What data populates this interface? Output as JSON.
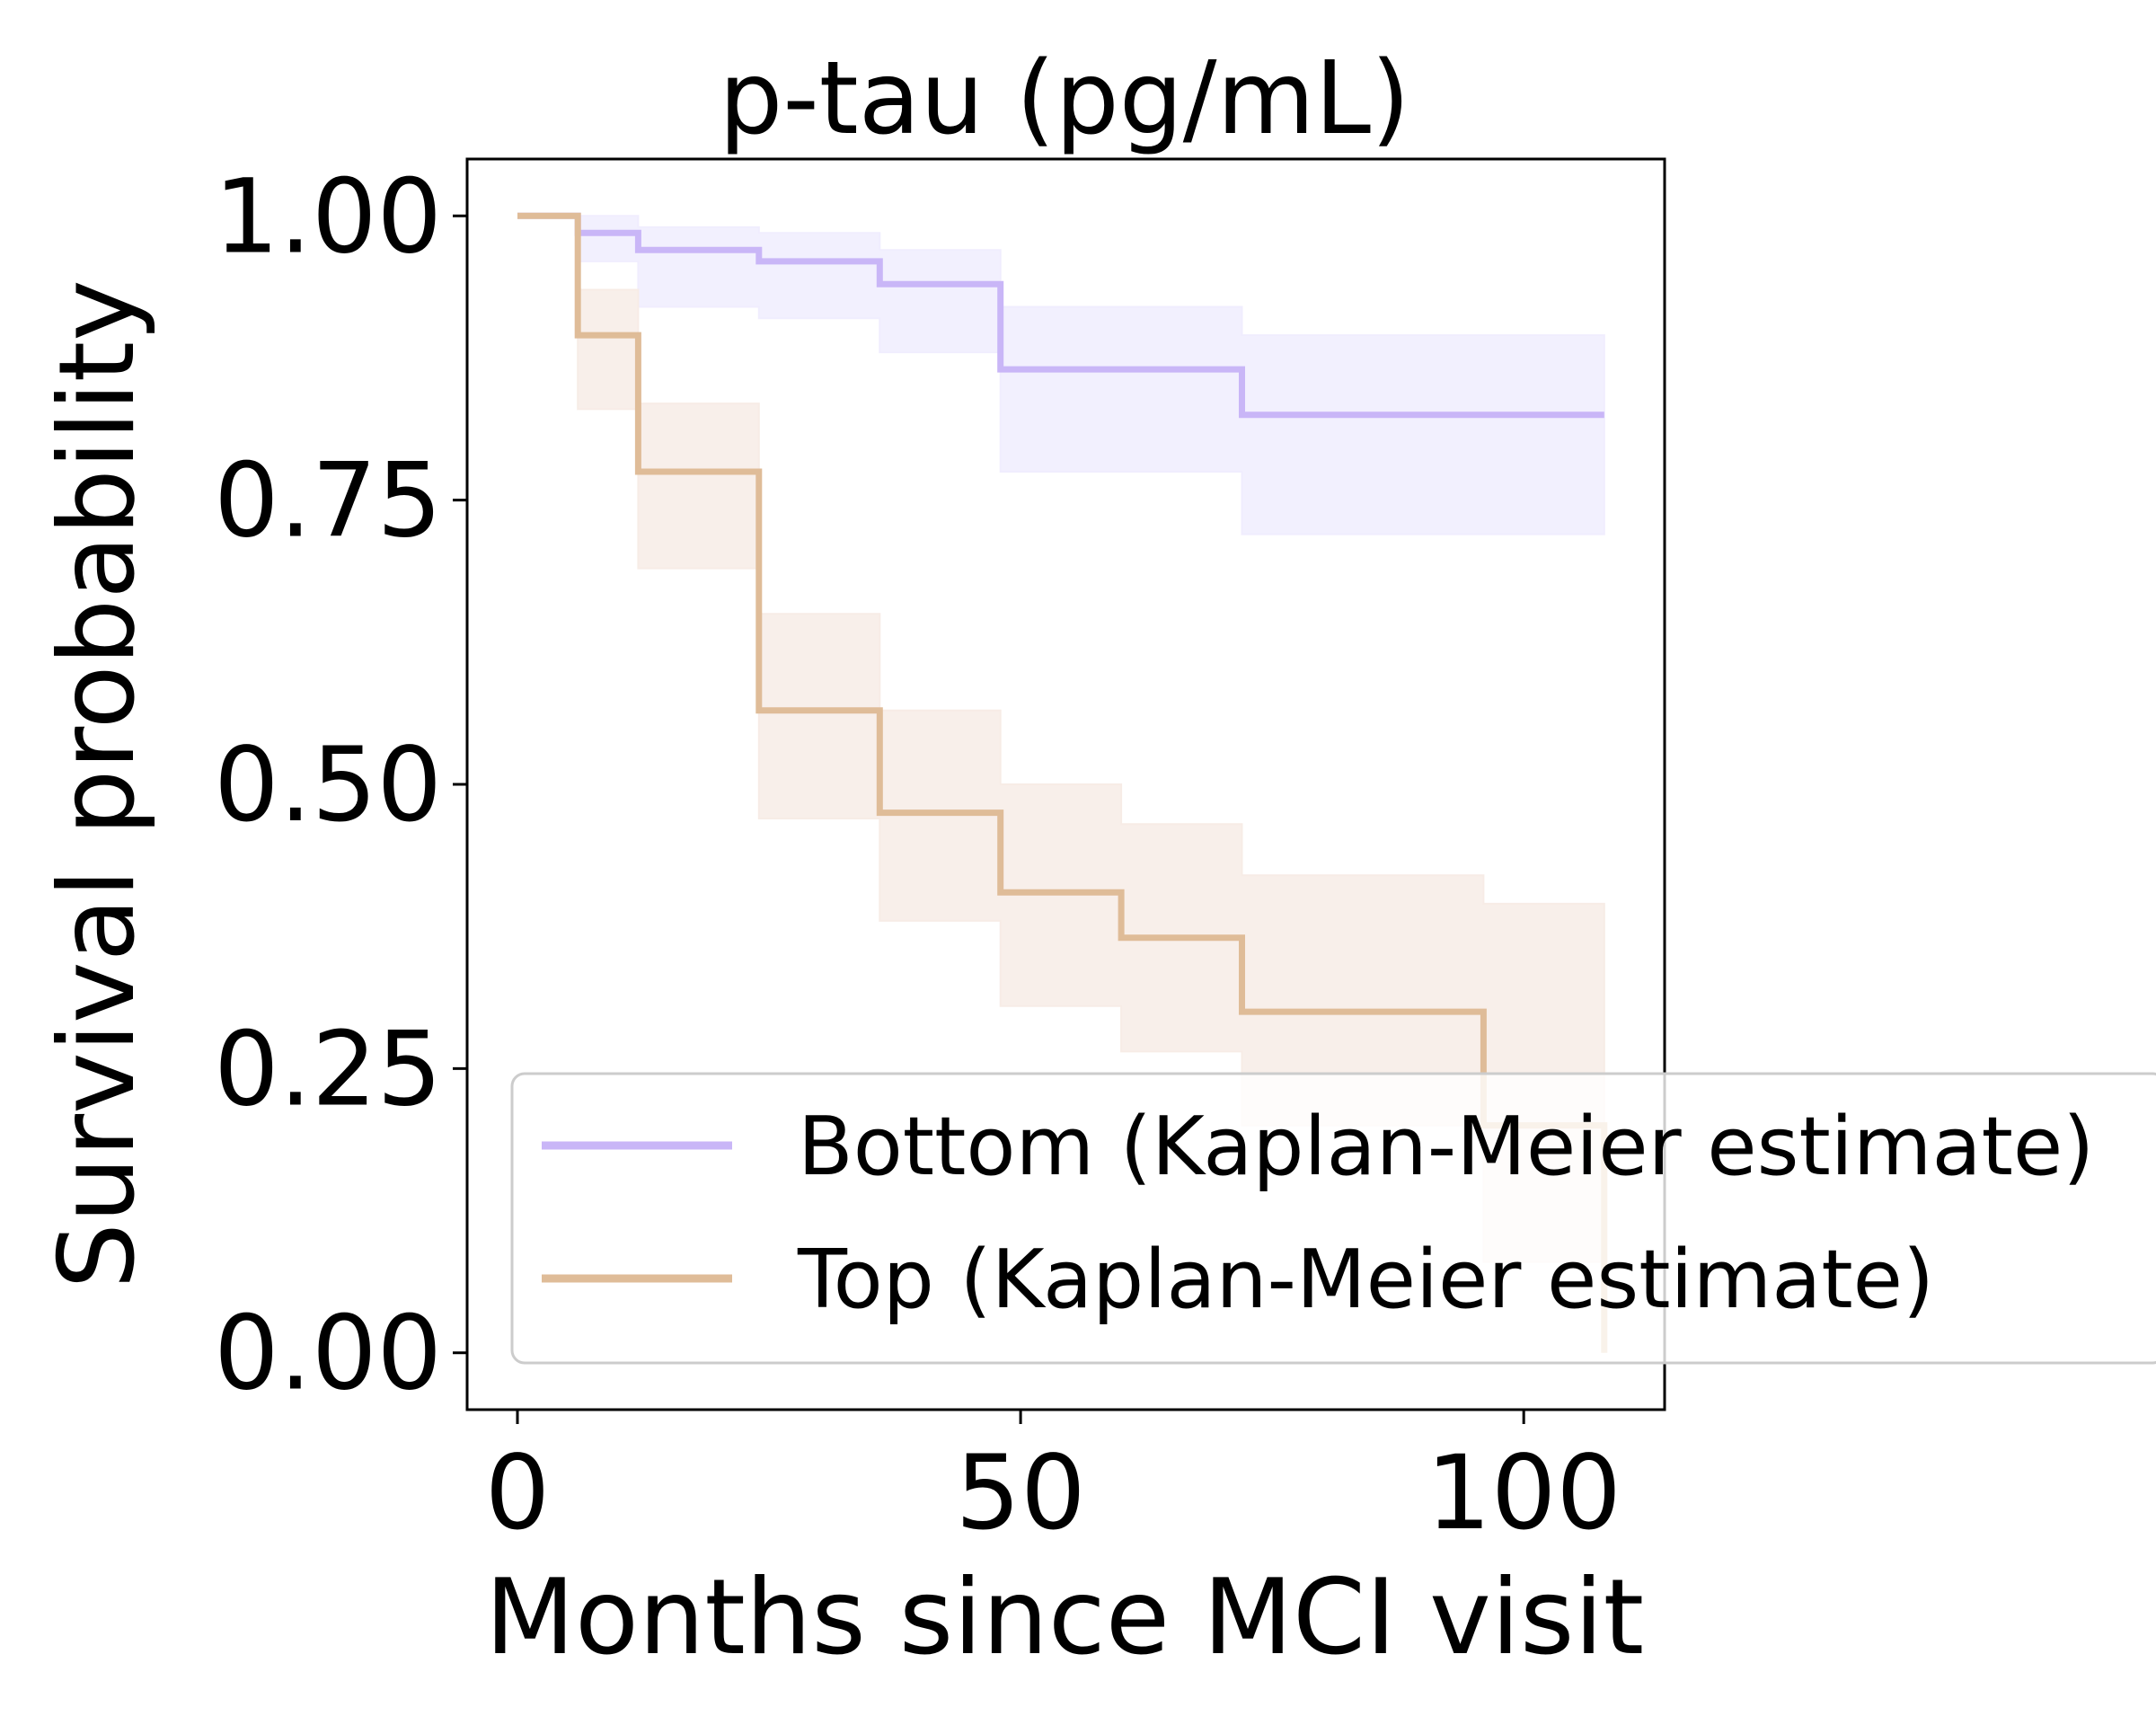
{
  "chart_data": {
    "type": "line",
    "title": "p-tau (pg/mL)",
    "xlabel": "Months since MCI visit",
    "ylabel": "Survival probability",
    "xlim": [
      -5,
      114
    ],
    "ylim": [
      -0.05,
      1.05
    ],
    "xticks": [
      0,
      50,
      100
    ],
    "xtick_labels": [
      "0",
      "50",
      "100"
    ],
    "yticks": [
      0,
      0.25,
      0.5,
      0.75,
      1.0
    ],
    "ytick_labels": [
      "0.00",
      "0.25",
      "0.50",
      "0.75",
      "1.00"
    ],
    "grid": false,
    "legend_position": "lower-right",
    "series": [
      {
        "name": "Bottom (Kaplan-Meier estimate)",
        "color": "#c9b6f7",
        "band_color": "#f0edfe",
        "steps": [
          {
            "x": 0,
            "y": 1.0,
            "lo": 1.0,
            "hi": 1.0
          },
          {
            "x": 6,
            "y": 0.985,
            "lo": 0.96,
            "hi": 1.0
          },
          {
            "x": 12,
            "y": 0.97,
            "lo": 0.92,
            "hi": 0.99
          },
          {
            "x": 24,
            "y": 0.96,
            "lo": 0.91,
            "hi": 0.985
          },
          {
            "x": 36,
            "y": 0.94,
            "lo": 0.88,
            "hi": 0.97
          },
          {
            "x": 48,
            "y": 0.865,
            "lo": 0.775,
            "hi": 0.92
          },
          {
            "x": 72,
            "y": 0.825,
            "lo": 0.72,
            "hi": 0.895
          },
          {
            "x": 108,
            "y": 0.825,
            "lo": 0.72,
            "hi": 0.895
          }
        ]
      },
      {
        "name": "Top (Kaplan-Meier estimate)",
        "color": "#dfbc98",
        "band_color": "#f7ece6",
        "steps": [
          {
            "x": 0,
            "y": 1.0,
            "lo": 1.0,
            "hi": 1.0
          },
          {
            "x": 6,
            "y": 0.895,
            "lo": 0.83,
            "hi": 0.935
          },
          {
            "x": 12,
            "y": 0.775,
            "lo": 0.69,
            "hi": 0.835
          },
          {
            "x": 24,
            "y": 0.565,
            "lo": 0.47,
            "hi": 0.65
          },
          {
            "x": 36,
            "y": 0.475,
            "lo": 0.38,
            "hi": 0.565
          },
          {
            "x": 48,
            "y": 0.405,
            "lo": 0.305,
            "hi": 0.5
          },
          {
            "x": 60,
            "y": 0.365,
            "lo": 0.265,
            "hi": 0.465
          },
          {
            "x": 72,
            "y": 0.3,
            "lo": 0.2,
            "hi": 0.42
          },
          {
            "x": 96,
            "y": 0.2,
            "lo": 0.08,
            "hi": 0.395
          },
          {
            "x": 108,
            "y": 0.0,
            "lo": 0.0,
            "hi": 0.395
          }
        ]
      }
    ]
  }
}
